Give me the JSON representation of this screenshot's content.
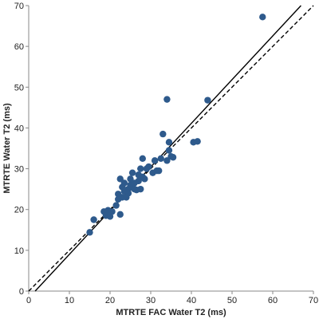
{
  "chart_data": {
    "type": "scatter",
    "title": "",
    "xlabel": "MTRTE FAC Water T2 (ms)",
    "ylabel": "MTRTE Water T2 (ms)",
    "xlim": [
      0,
      70
    ],
    "ylim": [
      0,
      70
    ],
    "xticks": [
      0,
      10,
      20,
      30,
      40,
      50,
      60,
      70
    ],
    "yticks": [
      0,
      10,
      20,
      30,
      40,
      50,
      60,
      70
    ],
    "grid": false,
    "legend": "none",
    "marker_color": "#2E5A8C",
    "lines": [
      {
        "style": "solid",
        "slope": 1.071,
        "intercept": -1.7
      },
      {
        "style": "dashed",
        "slope": 1.0,
        "intercept": 0
      }
    ],
    "points": [
      [
        15.0,
        14.4
      ],
      [
        16.0,
        17.5
      ],
      [
        18.5,
        19.5
      ],
      [
        19.0,
        18.5
      ],
      [
        19.5,
        19.8
      ],
      [
        20.0,
        18.3
      ],
      [
        20.5,
        19.5
      ],
      [
        21.5,
        21.0
      ],
      [
        22.0,
        22.5
      ],
      [
        22.0,
        23.8
      ],
      [
        22.5,
        18.8
      ],
      [
        22.5,
        27.5
      ],
      [
        23.0,
        23.0
      ],
      [
        23.0,
        25.5
      ],
      [
        23.5,
        24.5
      ],
      [
        23.5,
        26.5
      ],
      [
        24.0,
        23.0
      ],
      [
        24.5,
        25.0
      ],
      [
        24.5,
        24.0
      ],
      [
        25.0,
        26.0
      ],
      [
        25.0,
        27.5
      ],
      [
        25.5,
        29.0
      ],
      [
        25.5,
        25.5
      ],
      [
        26.0,
        25.0
      ],
      [
        26.0,
        26.5
      ],
      [
        26.5,
        24.8
      ],
      [
        27.0,
        27.0
      ],
      [
        27.0,
        28.5
      ],
      [
        27.5,
        25.0
      ],
      [
        27.5,
        30.0
      ],
      [
        28.0,
        28.0
      ],
      [
        28.0,
        32.5
      ],
      [
        28.5,
        27.5
      ],
      [
        29.0,
        30.0
      ],
      [
        29.5,
        30.5
      ],
      [
        30.5,
        29.0
      ],
      [
        31.0,
        32.0
      ],
      [
        31.5,
        29.5
      ],
      [
        32.0,
        29.5
      ],
      [
        32.5,
        32.5
      ],
      [
        33.0,
        38.5
      ],
      [
        34.0,
        47.0
      ],
      [
        34.0,
        32.0
      ],
      [
        34.5,
        34.5
      ],
      [
        34.5,
        36.5
      ],
      [
        35.0,
        33.0
      ],
      [
        35.5,
        32.8
      ],
      [
        40.5,
        36.5
      ],
      [
        41.5,
        36.7
      ],
      [
        44.0,
        46.8
      ],
      [
        57.5,
        67.2
      ]
    ]
  }
}
